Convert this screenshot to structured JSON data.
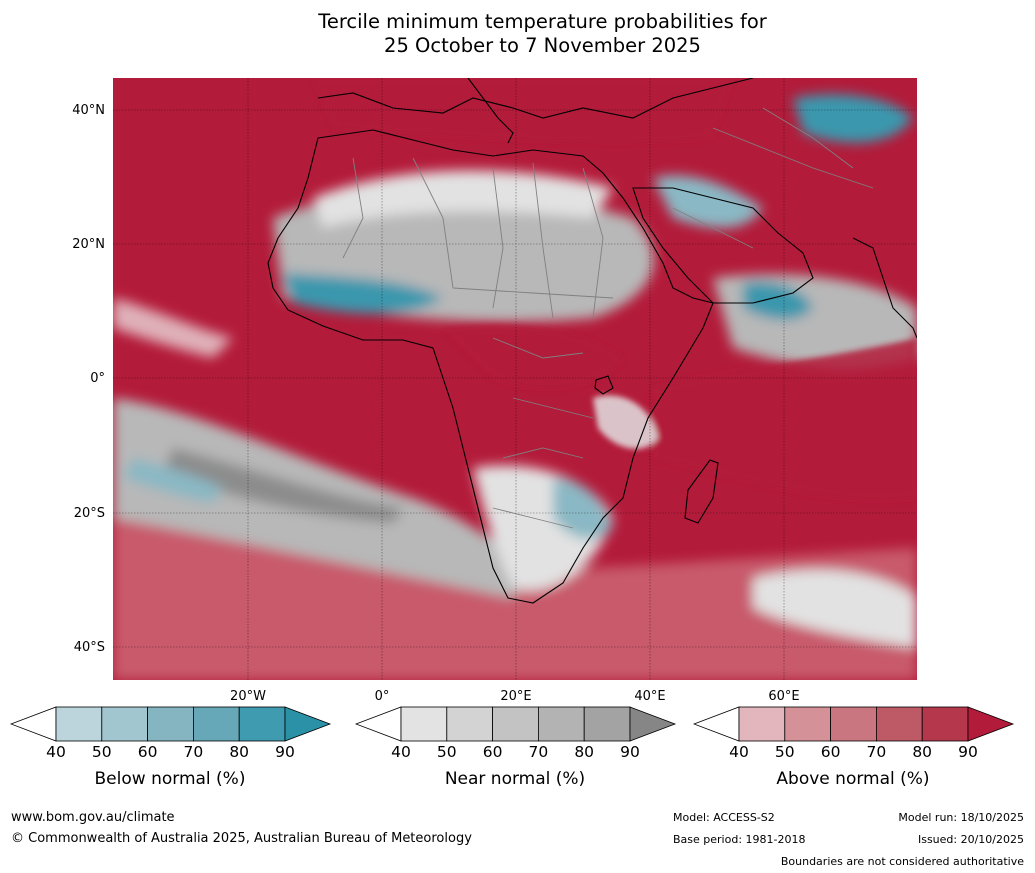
{
  "title_line1": "Tercile minimum temperature probabilities for",
  "title_line2": "25 October to 7 November 2025",
  "map": {
    "lat_labels": [
      "40°N",
      "20°N",
      "0°",
      "20°S",
      "40°S"
    ],
    "lon_labels": [
      "20°W",
      "0°",
      "20°E",
      "40°E",
      "60°E"
    ],
    "colors": {
      "above_dark": "#b31b3a",
      "above_mid": "#c85a6c",
      "above_light": "#dfb0b8",
      "near_dark": "#8c8c8c",
      "near_mid": "#b8b8b8",
      "near_light": "#e2e2e2",
      "below_dark": "#3a97ad",
      "below_mid": "#8ab8c4",
      "coast": "#000000",
      "border": "#808080"
    }
  },
  "colorbars": [
    {
      "title": "Below normal (%)",
      "ticks": [
        "40",
        "50",
        "60",
        "70",
        "80",
        "90"
      ],
      "colors": [
        "#ffffff",
        "#bcd5dc",
        "#a2c6cf",
        "#86b5c2",
        "#66a8b7",
        "#3f9bb0",
        "#2b91a6"
      ]
    },
    {
      "title": "Near normal (%)",
      "ticks": [
        "40",
        "50",
        "60",
        "70",
        "80",
        "90"
      ],
      "colors": [
        "#ffffff",
        "#e3e3e3",
        "#d3d3d3",
        "#c3c3c3",
        "#b3b3b3",
        "#a3a3a3",
        "#868686"
      ]
    },
    {
      "title": "Above normal (%)",
      "ticks": [
        "40",
        "50",
        "60",
        "70",
        "80",
        "90"
      ],
      "colors": [
        "#ffffff",
        "#e2b6bc",
        "#d59198",
        "#c97680",
        "#bd5a66",
        "#b5374b",
        "#b31b3a"
      ]
    }
  ],
  "footer": {
    "website": "www.bom.gov.au/climate",
    "copyright": "© Commonwealth of Australia 2025, Australian Bureau of Meteorology",
    "model": "Model: ACCESS-S2",
    "base_period": "Base period: 1981-2018",
    "model_run": "Model run: 18/10/2025",
    "issued": "Issued: 20/10/2025",
    "boundaries_note": "Boundaries are not considered authoritative"
  }
}
